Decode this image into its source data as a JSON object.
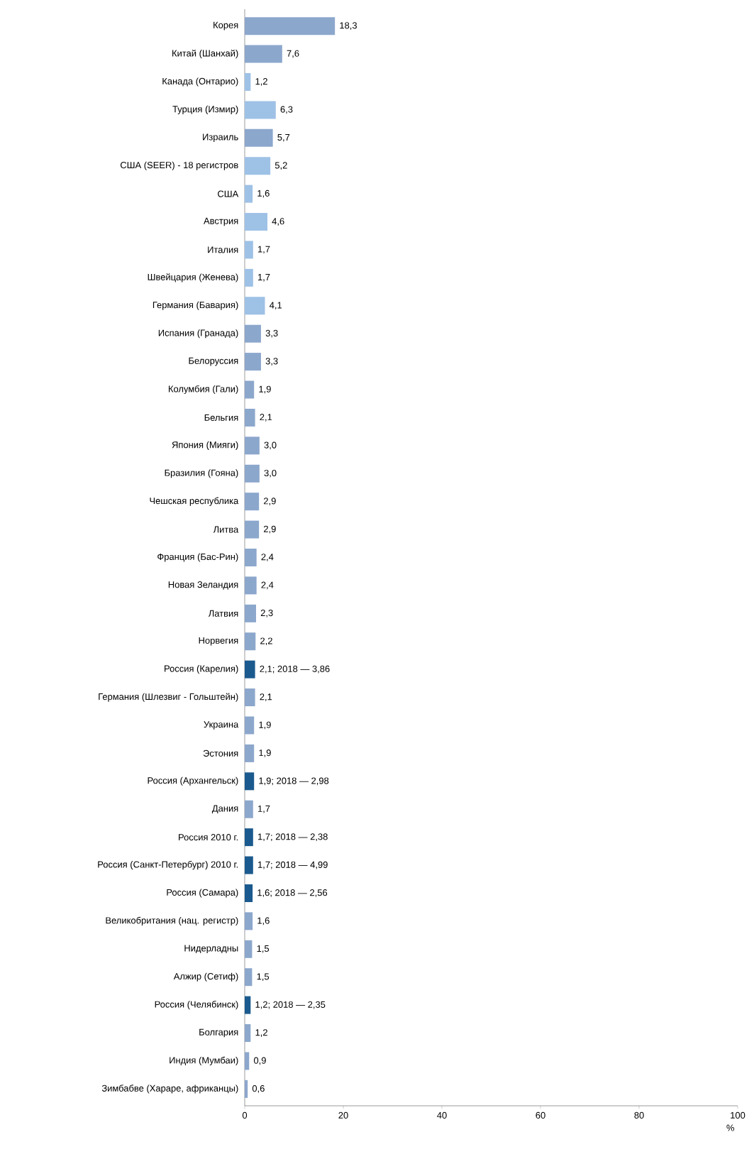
{
  "chart_data": {
    "type": "bar",
    "orientation": "horizontal",
    "xlabel": "%",
    "categories": [
      "Корея",
      "Китай (Шанхай)",
      "Канада (Онтарио)",
      "Турция (Измир)",
      "Израиль",
      "США (SEER) - 18 регистров",
      "США",
      "Австрия",
      "Италия",
      "Швейцария (Женева)",
      "Германия (Бавария)",
      "Испания (Гранада)",
      "Белоруссия",
      "Колумбия (Гали)",
      "Бельгия",
      "Япония (Мияги)",
      "Бразилия (Гояна)",
      "Чешская республика",
      "Литва",
      "Франция (Бас-Рин)",
      "Новая Зеландия",
      "Латвия",
      "Норвегия",
      "Россия (Карелия)",
      "Германия (Шлезвиг - Гольштейн)",
      "Украина",
      "Эстония",
      "Россия (Архангельск)",
      "Дания",
      "Россия 2010 г.",
      "Россия (Санкт-Петербург) 2010 г.",
      "Россия (Самара)",
      "Великобритания (нац. регистр)",
      "Нидерладны",
      "Алжир (Сетиф)",
      "Россия (Челябинск)",
      "Болгария",
      "Индия (Мумбаи)",
      "Зимбабве (Хараре, африканцы)"
    ],
    "values": [
      18.3,
      7.6,
      1.2,
      6.3,
      5.7,
      5.2,
      1.6,
      4.6,
      1.7,
      1.7,
      4.1,
      3.3,
      3.3,
      1.9,
      2.1,
      3.0,
      3.0,
      2.9,
      2.9,
      2.4,
      2.4,
      2.3,
      2.2,
      2.1,
      2.1,
      1.9,
      1.9,
      1.9,
      1.7,
      1.7,
      1.7,
      1.6,
      1.6,
      1.5,
      1.5,
      1.2,
      1.2,
      0.9,
      0.6
    ],
    "value_labels": [
      "18,3",
      "7,6",
      "1,2",
      "6,3",
      "5,7",
      "5,2",
      "1,6",
      "4,6",
      "1,7",
      "1,7",
      "4,1",
      "3,3",
      "3,3",
      "1,9",
      "2,1",
      "3,0",
      "3,0",
      "2,9",
      "2,9",
      "2,4",
      "2,4",
      "2,3",
      "2,2",
      "2,1; 2018 — 3,86",
      "2,1",
      "1,9",
      "1,9",
      "1,9; 2018 — 2,98",
      "1,7",
      "1,7; 2018 — 2,38",
      "1,7; 2018 — 4,99",
      "1,6; 2018 — 2,56",
      "1,6",
      "1,5",
      "1,5",
      "1,2; 2018 — 2,35",
      "1,2",
      "0,9",
      "0,6"
    ],
    "colors": [
      "#8ca7cc",
      "#8ca7cc",
      "#9ec1e6",
      "#9ec1e6",
      "#8ca7cc",
      "#9ec1e6",
      "#9ec1e6",
      "#9ec1e6",
      "#9ec1e6",
      "#9ec1e6",
      "#9ec1e6",
      "#8ca7cc",
      "#8ca7cc",
      "#8ca7cc",
      "#8ca7cc",
      "#8ca7cc",
      "#8ca7cc",
      "#8ca7cc",
      "#8ca7cc",
      "#8ca7cc",
      "#8ca7cc",
      "#8ca7cc",
      "#8ca7cc",
      "#1b5a8e",
      "#8ca7cc",
      "#8ca7cc",
      "#8ca7cc",
      "#1b5a8e",
      "#8ca7cc",
      "#1b5a8e",
      "#1b5a8e",
      "#1b5a8e",
      "#8ca7cc",
      "#8ca7cc",
      "#8ca7cc",
      "#1b5a8e",
      "#8ca7cc",
      "#8ca7cc",
      "#8ca7cc"
    ],
    "xlim": [
      0,
      100
    ],
    "xticks": [
      0,
      20,
      40,
      60,
      80,
      100
    ],
    "grid": false
  }
}
